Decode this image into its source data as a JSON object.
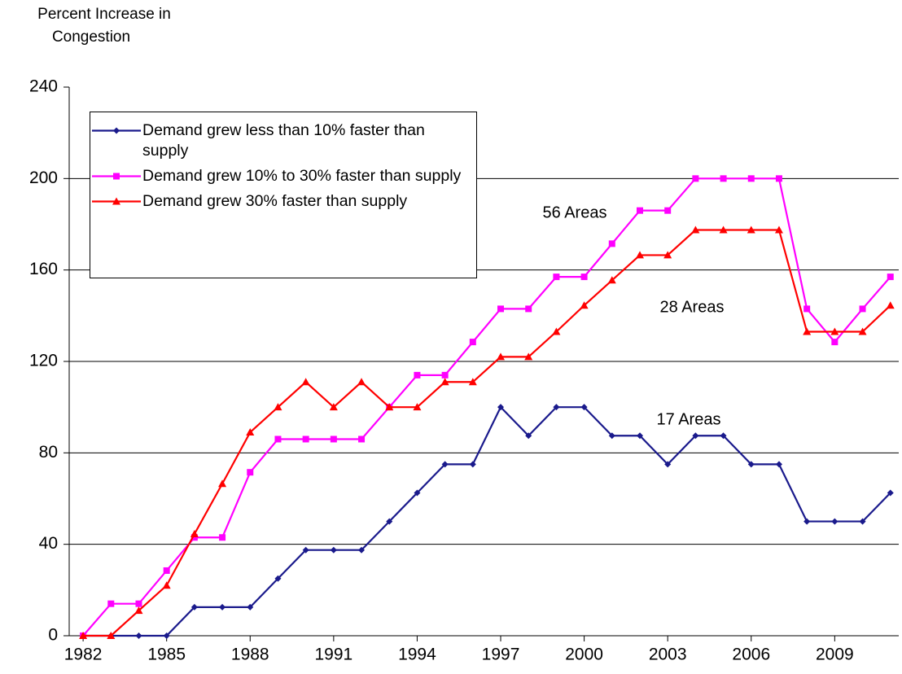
{
  "chart_data": {
    "type": "line",
    "y_label": [
      "Percent Increase in",
      "Congestion"
    ],
    "x": [
      1982,
      1983,
      1984,
      1985,
      1986,
      1987,
      1988,
      1989,
      1990,
      1991,
      1992,
      1993,
      1994,
      1995,
      1996,
      1997,
      1998,
      1999,
      2000,
      2001,
      2002,
      2003,
      2004,
      2005,
      2006,
      2007,
      2008,
      2009,
      2010,
      2011
    ],
    "series": [
      {
        "name": "Demand grew less than 10% faster than supply",
        "color": "#1a1a8c",
        "marker": "diamond",
        "values": [
          0,
          0,
          0,
          0,
          12.5,
          12.5,
          12.5,
          25,
          37.5,
          37.5,
          37.5,
          50,
          62.5,
          75,
          75,
          100,
          87.5,
          100,
          100,
          87.5,
          87.5,
          75,
          87.5,
          87.5,
          75,
          75,
          50,
          50,
          50,
          62.5
        ]
      },
      {
        "name": "Demand grew 10% to 30% faster than supply",
        "color": "#ff00ff",
        "marker": "square",
        "values": [
          0,
          14,
          14,
          28.5,
          43,
          43,
          71.5,
          86,
          86,
          86,
          86,
          100,
          114,
          114,
          128.5,
          143,
          143,
          157,
          157,
          171.5,
          186,
          186,
          200,
          200,
          200,
          200,
          143,
          128.5,
          143,
          157
        ]
      },
      {
        "name": "Demand grew 30% faster than supply",
        "color": "#ff0000",
        "marker": "triangle",
        "values": [
          0,
          0,
          11,
          22,
          44.5,
          66.5,
          89,
          100,
          111,
          100,
          111,
          100,
          100,
          111,
          111,
          122,
          122,
          133,
          144.5,
          155.5,
          166.5,
          166.5,
          177.5,
          177.5,
          177.5,
          177.5,
          133,
          133,
          133,
          144.5
        ]
      }
    ],
    "annotations": [
      "56 Areas",
      "28 Areas",
      "17 Areas"
    ],
    "xlim": [
      1981.5,
      2011.3
    ],
    "xticks": [
      1982,
      1985,
      1988,
      1991,
      1994,
      1997,
      2000,
      2003,
      2006,
      2009
    ],
    "ylim": [
      0,
      240
    ],
    "yticks": [
      0,
      40,
      80,
      120,
      160,
      200,
      240
    ],
    "grid": true
  }
}
